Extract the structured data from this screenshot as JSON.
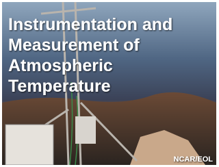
{
  "title_lines": [
    "Instrumentation and",
    "Measurement of",
    "Atmospheric",
    "Temperature"
  ],
  "credit": "NCAR/EOL"
}
